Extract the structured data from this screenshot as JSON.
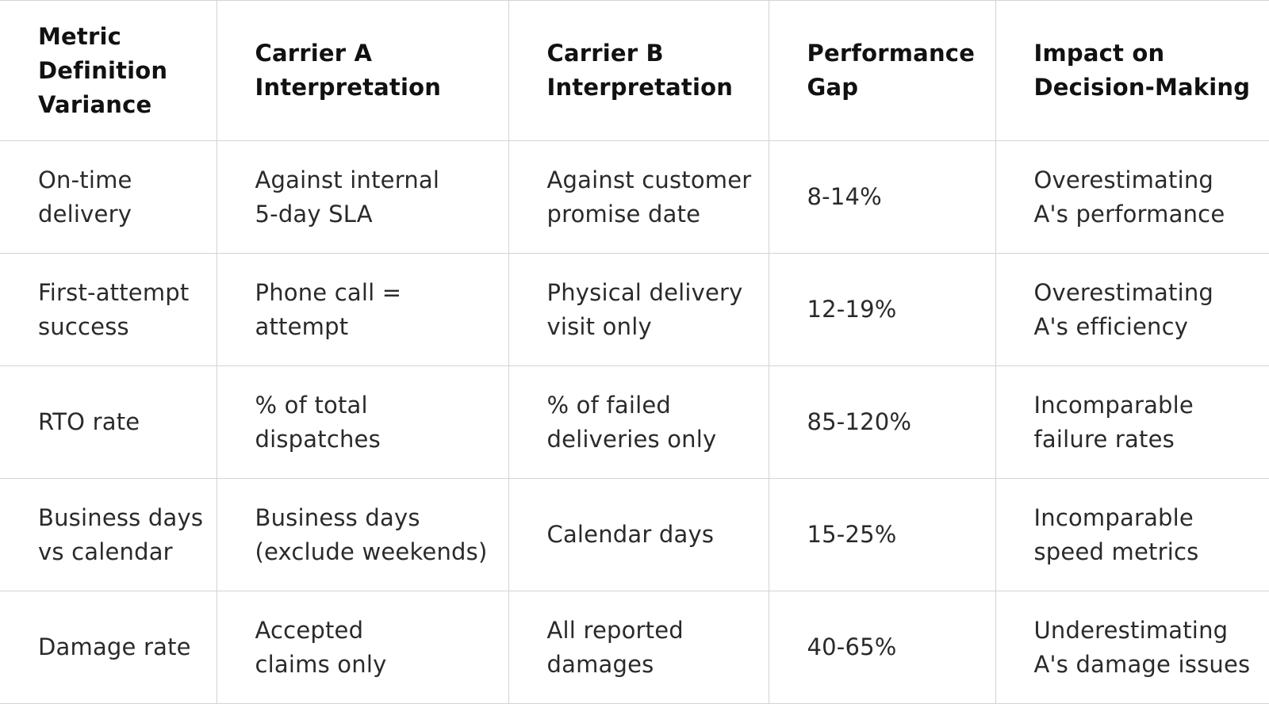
{
  "table": {
    "header": [
      "Metric\nDefinition\nVariance",
      "Carrier A\nInterpretation",
      "Carrier B\nInterpretation",
      "Performance\nGap",
      "Impact on\nDecision-Making"
    ],
    "rows": [
      [
        "On-time\ndelivery",
        "Against internal\n5-day SLA",
        "Against customer\npromise date",
        "8-14%",
        "Overestimating\nA's performance"
      ],
      [
        "First-attempt\nsuccess",
        "Phone call =\nattempt",
        "Physical delivery\nvisit only",
        "12-19%",
        "Overestimating\nA's efficiency"
      ],
      [
        "RTO rate",
        "% of total\ndispatches",
        "% of failed\ndeliveries only",
        "85-120%",
        "Incomparable\nfailure rates"
      ],
      [
        "Business days\nvs calendar",
        "Business days\n(exclude weekends)",
        "Calendar days",
        "15-25%",
        "Incomparable\nspeed metrics"
      ],
      [
        "Damage rate",
        "Accepted\nclaims only",
        "All reported\ndamages",
        "40-65%",
        "Underestimating\nA's damage issues"
      ]
    ]
  }
}
